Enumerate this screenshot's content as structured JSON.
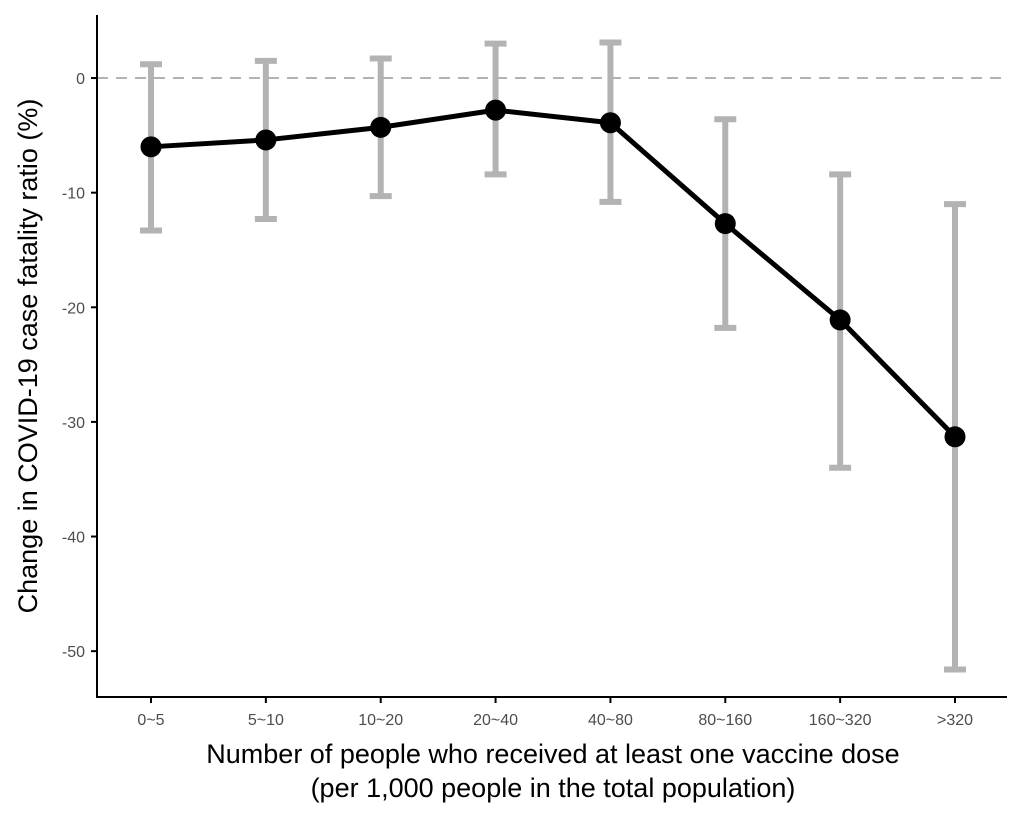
{
  "chart_data": {
    "type": "line",
    "title": "",
    "xlabel_line1": "Number of people who received at least one vaccine dose",
    "xlabel_line2": "(per 1,000 people in the total population)",
    "ylabel": "Change in COVID-19 case fatality ratio (%)",
    "categories": [
      "0~5",
      "5~10",
      "10~20",
      "20~40",
      "40~80",
      "80~160",
      "160~320",
      ">320"
    ],
    "y_ticks": [
      0,
      -10,
      -20,
      -30,
      -40,
      -50
    ],
    "ylim": [
      -54,
      5.5
    ],
    "series": [
      {
        "values": [
          -6.0,
          -5.4,
          -4.3,
          -2.8,
          -3.9,
          -12.7,
          -21.1,
          -31.3
        ],
        "ci_lower": [
          -13.3,
          -12.3,
          -10.3,
          -8.4,
          -10.8,
          -21.8,
          -34.0,
          -51.6
        ],
        "ci_upper": [
          1.2,
          1.5,
          1.7,
          3.0,
          3.1,
          -3.6,
          -8.4,
          -11.0
        ]
      }
    ],
    "reference_line": 0,
    "grid": false,
    "legend": "none",
    "colors": {
      "line": "#000000",
      "points": "#000000",
      "error_bars": "#b3b3b3",
      "reference_line": "#b3b3b3",
      "axis": "#000000",
      "tick_labels": "#4d4d4d"
    }
  }
}
